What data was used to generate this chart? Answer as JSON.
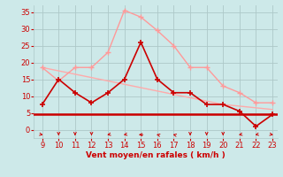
{
  "hours": [
    9,
    10,
    11,
    12,
    13,
    14,
    15,
    16,
    17,
    18,
    19,
    20,
    21,
    22,
    23
  ],
  "wind_avg": [
    7.5,
    15,
    11,
    8,
    11,
    15,
    26,
    15,
    11,
    11,
    7.5,
    7.5,
    5.5,
    1,
    4.5
  ],
  "wind_gust": [
    18.5,
    14.5,
    18.5,
    18.5,
    23,
    35.5,
    33.5,
    29.5,
    25,
    18.5,
    18.5,
    13,
    11,
    8,
    8
  ],
  "wind_trend": [
    18.5,
    17.5,
    16.5,
    15.5,
    14.5,
    13.5,
    12.5,
    11.5,
    10.5,
    9.5,
    8.5,
    7.5,
    7.0,
    6.5,
    6.0
  ],
  "wind_min_line": 4.5,
  "xlim_min": 8.5,
  "xlim_max": 23.3,
  "ylim_min": -2.5,
  "ylim_max": 37,
  "yticks": [
    0,
    5,
    10,
    15,
    20,
    25,
    30,
    35
  ],
  "xticks": [
    9,
    10,
    11,
    12,
    13,
    14,
    15,
    16,
    17,
    18,
    19,
    20,
    21,
    22,
    23
  ],
  "xlabel": "Vent moyen/en rafales ( km/h )",
  "bg_color": "#cde9e9",
  "grid_color": "#adc8c8",
  "line_avg_color": "#cc0000",
  "line_gust_color": "#ff9999",
  "line_trend_color": "#ffaaaa",
  "hline_color": "#cc0000",
  "xlabel_color": "#cc0000",
  "ytick_color": "#cc0000",
  "xtick_color": "#cc0000",
  "arrow_angles": [
    45,
    0,
    0,
    0,
    315,
    315,
    270,
    225,
    225,
    0,
    0,
    0,
    315,
    315,
    45
  ]
}
